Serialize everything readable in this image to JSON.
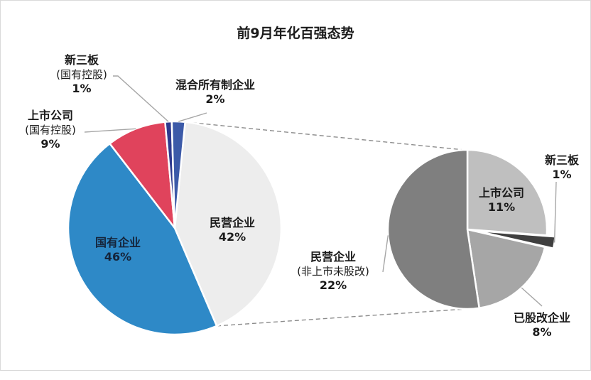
{
  "chart_data": [
    {
      "type": "pie",
      "title": "前9月年化百强态势",
      "slices": [
        {
          "key": "private",
          "label": "民营企业",
          "value": 42,
          "value_label": "42%",
          "color": "#ededed"
        },
        {
          "key": "state",
          "label": "国有企业",
          "value": 46,
          "value_label": "46%",
          "color": "#2e89c7"
        },
        {
          "key": "listed_state",
          "label": "上市公司",
          "sublabel": "(国有控股)",
          "value": 9,
          "value_label": "9%",
          "color": "#e0435c"
        },
        {
          "key": "neeq_state",
          "label": "新三板",
          "sublabel": "(国有控股)",
          "value": 1,
          "value_label": "1%",
          "color": "#2f3a8f"
        },
        {
          "key": "mixed",
          "label": "混合所有制企业",
          "value": 2,
          "value_label": "2%",
          "color": "#3c5aa8"
        }
      ]
    },
    {
      "type": "pie",
      "title": "",
      "breakdown_of": "民营企业",
      "slices": [
        {
          "key": "listed",
          "label": "上市公司",
          "value": 11,
          "value_label": "11%",
          "color": "#bfbfbf"
        },
        {
          "key": "neeq",
          "label": "新三板",
          "value": 1,
          "value_label": "1%",
          "color": "#3f3f3f"
        },
        {
          "key": "restructured",
          "label": "已股改企业",
          "value": 8,
          "value_label": "8%",
          "color": "#a6a6a6"
        },
        {
          "key": "unrestructured",
          "label": "民营企业",
          "sublabel": "(非上市未股改)",
          "value": 22,
          "value_label": "22%",
          "color": "#7f7f7f"
        }
      ]
    }
  ]
}
